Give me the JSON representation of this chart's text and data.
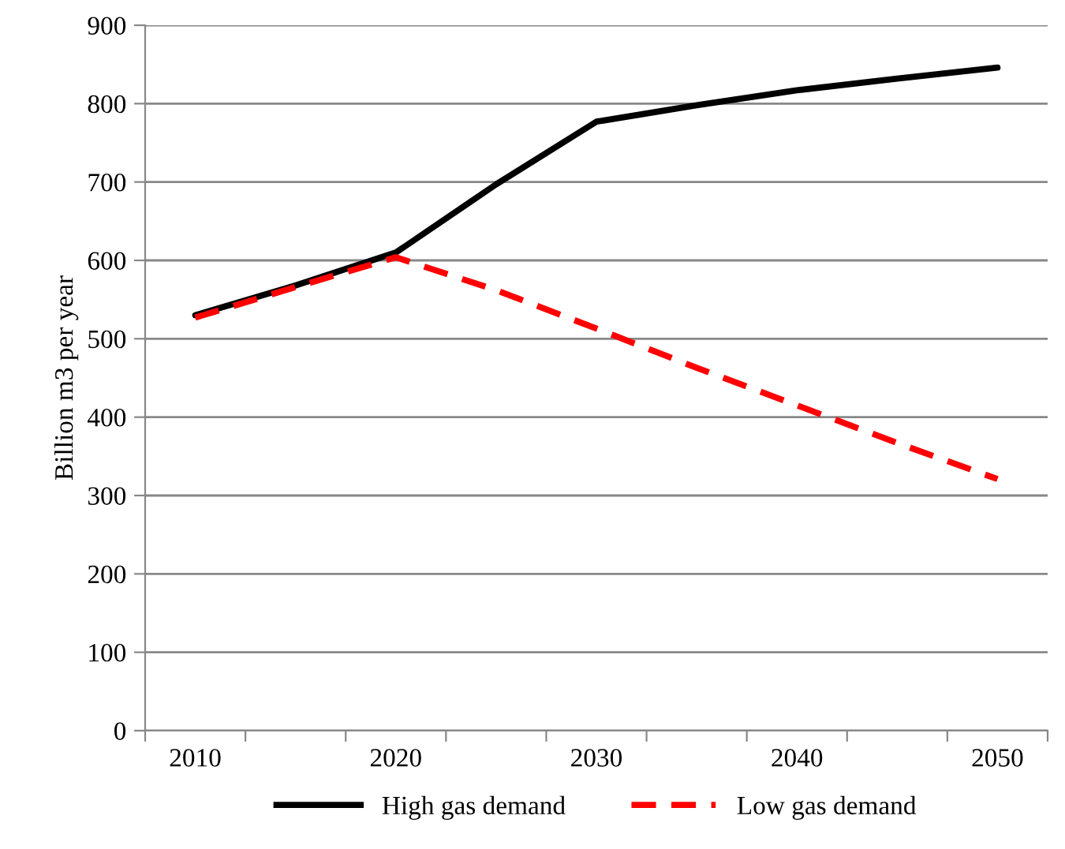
{
  "chart_data": {
    "type": "line",
    "ylabel": "Billion m3 per year",
    "categories": [
      "2010",
      null,
      "2020",
      null,
      "2030",
      null,
      "2040",
      null,
      "2050"
    ],
    "series": [
      {
        "name": "High gas demand",
        "color": "#000000",
        "line_style": "solid",
        "values": [
          530,
          568,
          610,
          697,
          777,
          798,
          817,
          832,
          846
        ]
      },
      {
        "name": "Low gas demand",
        "color": "#ff0000",
        "line_style": "dashed",
        "values": [
          527,
          566,
          604,
          562,
          513,
          463,
          415,
          367,
          321
        ]
      }
    ],
    "ylim": [
      0,
      900
    ],
    "yticks": [
      0,
      100,
      200,
      300,
      400,
      500,
      600,
      700,
      800,
      900
    ],
    "grid": "y",
    "legend": "bottom",
    "marker": "none"
  }
}
